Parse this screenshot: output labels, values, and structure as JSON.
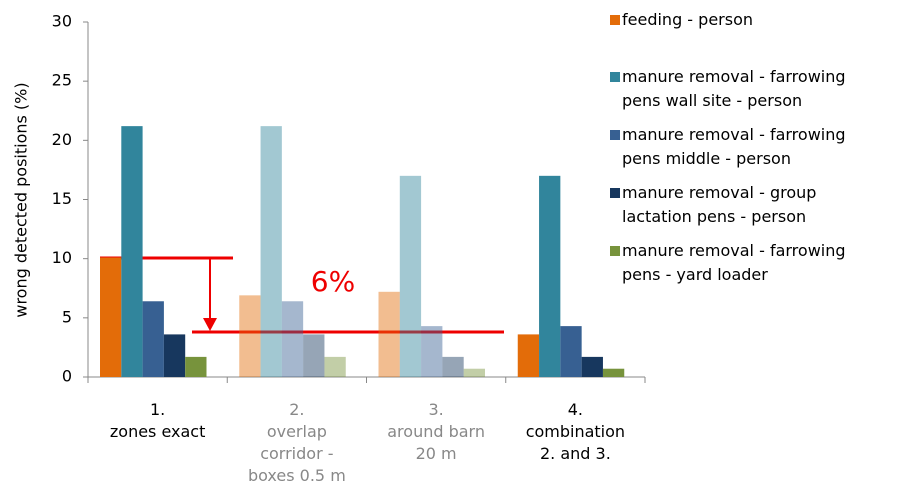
{
  "chart_data": {
    "type": "bar",
    "y_axis_label": "wrong detected positions (%)",
    "categories": [
      "1.\nzones exact",
      "2.\noverlap\ncorridor -\nboxes 0.5 m",
      "3.\naround barn\n20 m",
      "4.\ncombination\n2. and 3."
    ],
    "category_opacity": [
      1,
      0.45,
      0.45,
      1
    ],
    "series": [
      {
        "name": "feeding - person",
        "color": "#e36c09",
        "values": [
          10.1,
          6.9,
          7.2,
          3.6
        ]
      },
      {
        "name": "manure removal - farrowing\npens wall site - person",
        "color": "#31859c",
        "values": [
          21.2,
          21.2,
          17.0,
          17.0
        ]
      },
      {
        "name": "manure removal - farrowing\npens middle - person",
        "color": "#376092",
        "values": [
          6.4,
          6.4,
          4.3,
          4.3
        ]
      },
      {
        "name": "manure removal - group\nlactation pens - person",
        "color": "#17375e",
        "values": [
          3.6,
          3.6,
          1.7,
          1.7
        ]
      },
      {
        "name": "manure removal - farrowing\npens - yard loader",
        "color": "#77933c",
        "values": [
          1.7,
          1.7,
          0.7,
          0.7
        ]
      }
    ],
    "annotation": "6%",
    "ylim": [
      0,
      30
    ],
    "yticks": [
      0,
      5,
      10,
      15,
      20,
      25,
      30
    ],
    "grid": false,
    "legend": "right"
  }
}
